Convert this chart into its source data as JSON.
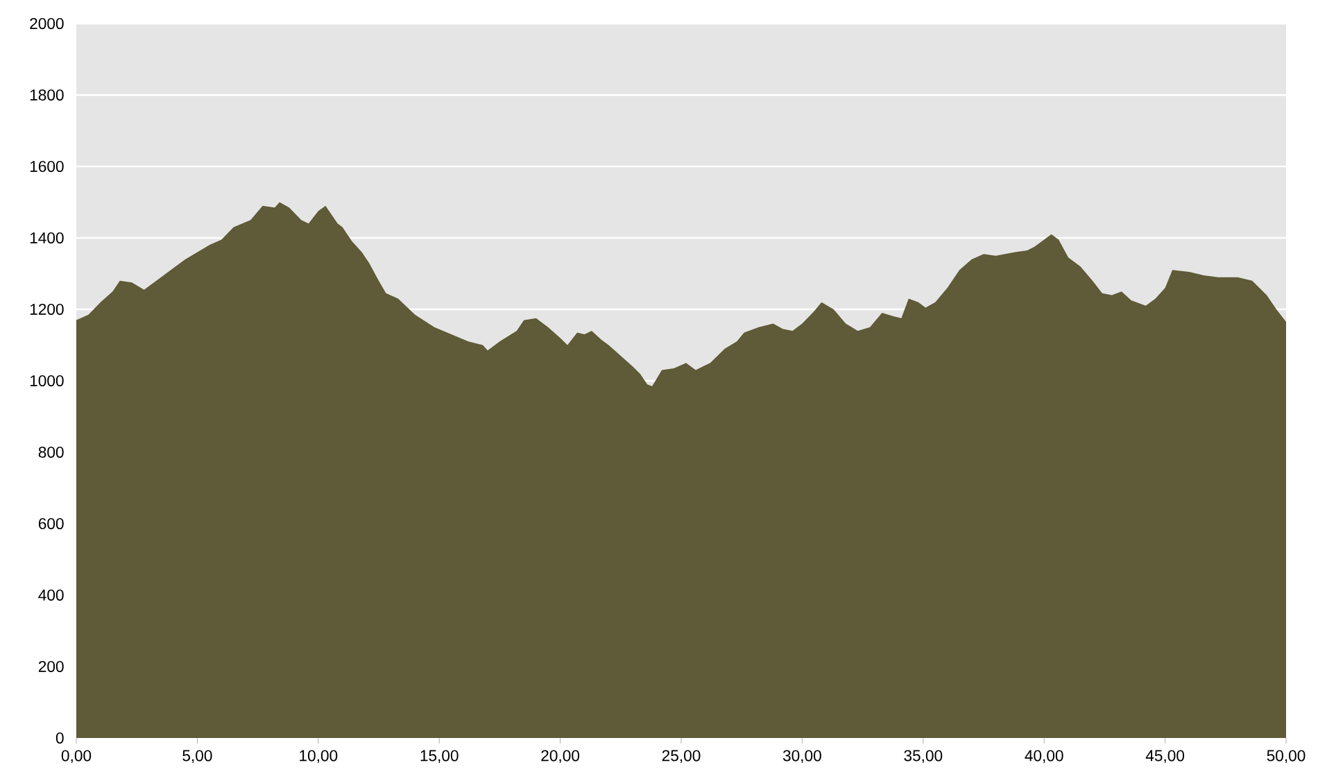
{
  "chart_data": {
    "type": "area",
    "color": "#5f5a37",
    "grid": "y",
    "xlim": [
      0,
      50
    ],
    "ylim": [
      0,
      2000
    ],
    "xticks": [
      {
        "value": 0,
        "label": "0,00"
      },
      {
        "value": 5,
        "label": "5,00"
      },
      {
        "value": 10,
        "label": "10,00"
      },
      {
        "value": 15,
        "label": "15,00"
      },
      {
        "value": 20,
        "label": "20,00"
      },
      {
        "value": 25,
        "label": "25,00"
      },
      {
        "value": 30,
        "label": "30,00"
      },
      {
        "value": 35,
        "label": "35,00"
      },
      {
        "value": 40,
        "label": "40,00"
      },
      {
        "value": 45,
        "label": "45,00"
      },
      {
        "value": 50,
        "label": "50,00"
      }
    ],
    "yticks": [
      0,
      200,
      400,
      600,
      800,
      1000,
      1200,
      1400,
      1600,
      1800,
      2000
    ],
    "x": [
      0,
      0.5,
      1,
      1.5,
      1.8,
      2.3,
      2.8,
      3.5,
      4.5,
      5.5,
      6,
      6.5,
      7.2,
      7.7,
      8.2,
      8.4,
      8.8,
      9.3,
      9.6,
      10,
      10.3,
      10.8,
      11,
      11.4,
      11.8,
      12.1,
      12.5,
      12.8,
      13.3,
      14,
      14.8,
      15.5,
      16.2,
      16.8,
      17,
      17.5,
      18.2,
      18.5,
      19,
      19.5,
      20,
      20.3,
      20.7,
      21,
      21.3,
      21.7,
      22,
      22.5,
      23,
      23.3,
      23.6,
      23.8,
      24.2,
      24.7,
      25.2,
      25.6,
      26.2,
      26.8,
      27.3,
      27.6,
      28.2,
      28.8,
      29.2,
      29.6,
      30,
      30.5,
      30.8,
      31.3,
      31.8,
      32.3,
      32.8,
      33.3,
      33.8,
      34.1,
      34.4,
      34.8,
      35.1,
      35.5,
      36,
      36.5,
      37,
      37.5,
      38,
      38.8,
      39.3,
      39.6,
      40,
      40.3,
      40.6,
      41,
      41.5,
      42,
      42.4,
      42.8,
      43.2,
      43.6,
      44.2,
      44.6,
      45,
      45.3,
      46,
      46.6,
      47.2,
      48,
      48.6,
      49.2,
      49.6,
      50
    ],
    "values": [
      1170,
      1185,
      1220,
      1250,
      1280,
      1275,
      1255,
      1290,
      1340,
      1380,
      1395,
      1430,
      1450,
      1490,
      1485,
      1500,
      1485,
      1450,
      1440,
      1475,
      1490,
      1440,
      1430,
      1390,
      1360,
      1330,
      1280,
      1245,
      1230,
      1185,
      1150,
      1130,
      1110,
      1100,
      1085,
      1110,
      1140,
      1170,
      1175,
      1150,
      1120,
      1100,
      1135,
      1130,
      1140,
      1115,
      1100,
      1070,
      1040,
      1020,
      990,
      985,
      1030,
      1035,
      1050,
      1030,
      1050,
      1090,
      1110,
      1135,
      1150,
      1160,
      1145,
      1140,
      1160,
      1195,
      1220,
      1200,
      1160,
      1140,
      1150,
      1190,
      1180,
      1175,
      1230,
      1220,
      1205,
      1220,
      1260,
      1310,
      1340,
      1355,
      1350,
      1360,
      1365,
      1375,
      1395,
      1410,
      1395,
      1345,
      1320,
      1280,
      1245,
      1240,
      1250,
      1225,
      1210,
      1230,
      1260,
      1310,
      1305,
      1295,
      1290,
      1290,
      1280,
      1240,
      1200,
      1165
    ]
  }
}
